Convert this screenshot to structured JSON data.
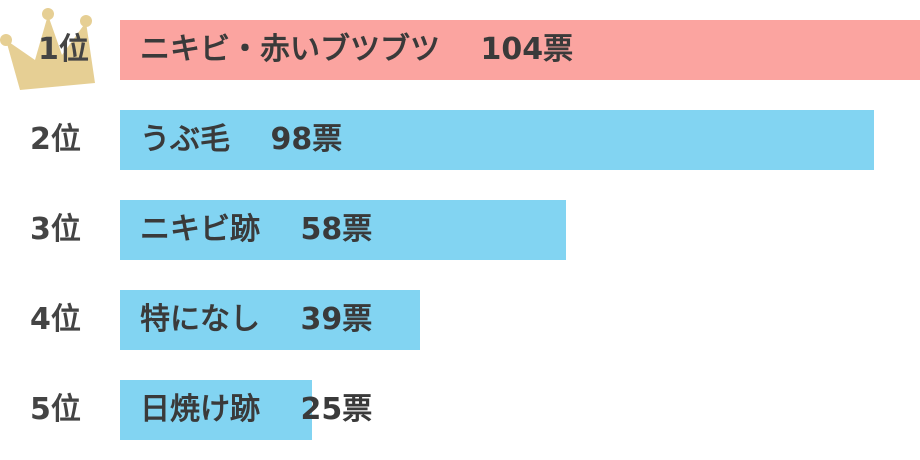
{
  "chart_data": {
    "type": "bar",
    "orientation": "horizontal",
    "categories": [
      "ニキビ・赤いブツブツ",
      "うぶ毛",
      "ニキビ跡",
      "特になし",
      "日焼け跡"
    ],
    "ranks": [
      "1位",
      "2位",
      "3位",
      "4位",
      "5位"
    ],
    "values": [
      104,
      98,
      58,
      39,
      25
    ],
    "unit": "票",
    "labels": [
      "ニキビ・赤いブツブツ　 104票",
      "うぶ毛　 98票",
      "ニキビ跡　 58票",
      "特になし　 39票",
      "日焼け跡　 25票"
    ],
    "xlim": [
      0,
      104
    ],
    "grid": false,
    "legend": "none",
    "colors": {
      "top": "#fba4a0",
      "other": "#82d4f2",
      "crown": "#e6cf94"
    }
  },
  "icons": {
    "rank1": "crown-icon"
  }
}
